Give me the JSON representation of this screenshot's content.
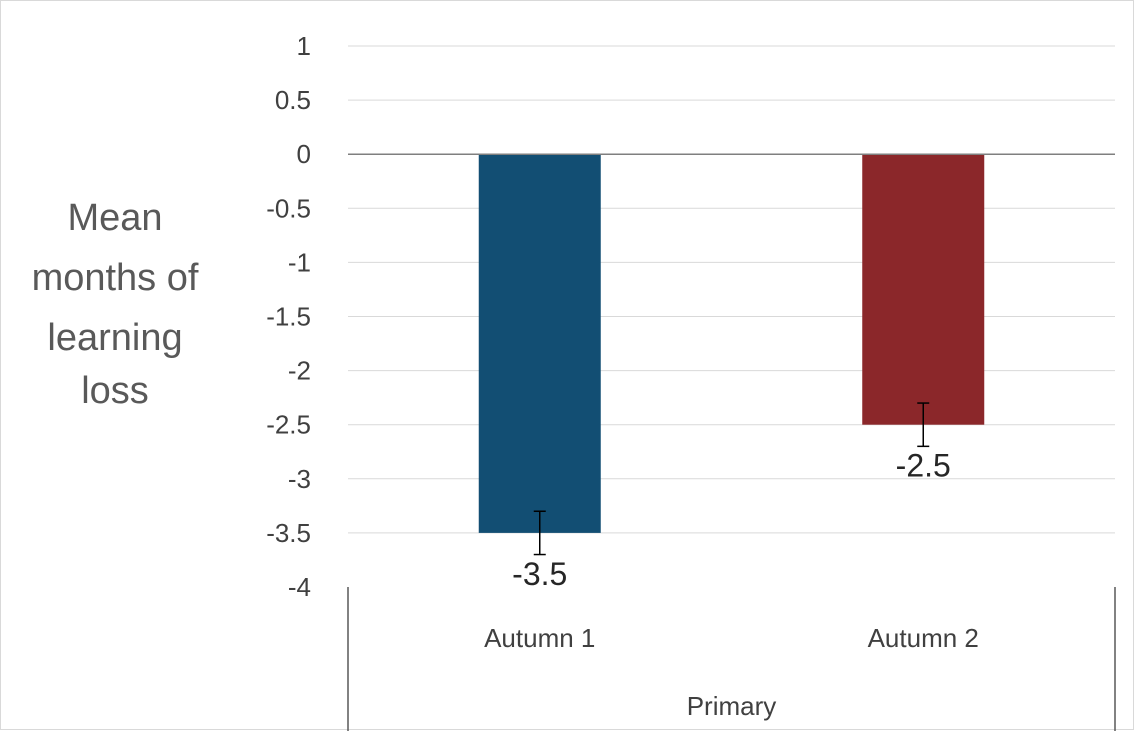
{
  "chart_data": {
    "type": "bar",
    "title": "",
    "xlabel": "",
    "ylabel_lines": [
      "Mean",
      "months of",
      "learning",
      "loss"
    ],
    "group_label": "Primary",
    "categories": [
      "Autumn 1",
      "Autumn 2"
    ],
    "values": [
      -3.5,
      -2.5
    ],
    "data_labels": [
      "-3.5",
      "-2.5"
    ],
    "error_bars": [
      [
        -3.7,
        -3.3
      ],
      [
        -2.7,
        -2.3
      ]
    ],
    "colors": [
      "#124e73",
      "#8b272a"
    ],
    "ylim": [
      -4,
      1
    ],
    "yticks": [
      1,
      0.5,
      0,
      -0.5,
      -1,
      -1.5,
      -2,
      -2.5,
      -3,
      -3.5,
      -4
    ],
    "ytick_labels": [
      "1",
      "0.5",
      "0",
      "-0.5",
      "-1",
      "-1.5",
      "-2",
      "-2.5",
      "-3",
      "-3.5",
      "-4"
    ],
    "grid": true,
    "legend": "none"
  }
}
